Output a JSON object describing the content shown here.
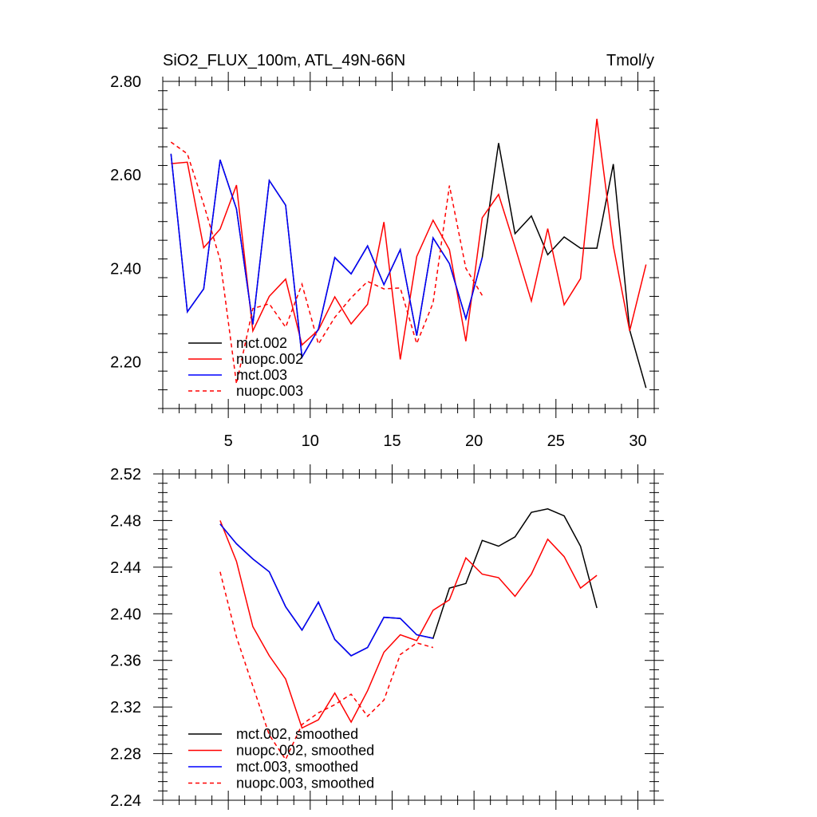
{
  "chart_data": [
    {
      "type": "line",
      "title": "SiO2_FLUX_100m, ATL_49N-66N",
      "units": "Tmol/y",
      "xlim": [
        1,
        31
      ],
      "ylim": [
        2.1,
        2.8
      ],
      "xticks": [
        5,
        10,
        15,
        20,
        25,
        30
      ],
      "xtick_labels": [
        "5",
        "10",
        "15",
        "20",
        "25",
        "30"
      ],
      "yticks": [
        2.2,
        2.4,
        2.6,
        2.8
      ],
      "ytick_labels": [
        "2.20",
        "2.40",
        "2.60",
        "2.80"
      ],
      "legend_position": "bottom-left",
      "series": [
        {
          "name": "mct.002",
          "color": "#000000",
          "dash": "solid",
          "x": [
            1.5,
            2.5,
            3.5,
            4.5,
            5.5,
            6.5,
            7.5,
            8.5,
            9.5,
            10.5,
            11.5,
            12.5,
            13.5,
            14.5,
            15.5,
            16.5,
            17.5,
            18.5,
            19.5,
            20.5,
            21.5,
            22.5,
            23.5,
            24.5,
            25.5,
            26.5,
            27.5,
            28.5,
            29.5,
            30.5
          ],
          "values": [
            2.645,
            2.307,
            2.356,
            2.632,
            2.527,
            2.28,
            2.588,
            2.535,
            2.21,
            2.27,
            2.423,
            2.388,
            2.448,
            2.365,
            2.44,
            2.256,
            2.465,
            2.41,
            2.292,
            2.423,
            2.668,
            2.474,
            2.512,
            2.429,
            2.467,
            2.443,
            2.443,
            2.623,
            2.268,
            2.144
          ]
        },
        {
          "name": "nuopc.002",
          "color": "#ff0000",
          "dash": "solid",
          "x": [
            1.5,
            2.5,
            3.5,
            4.5,
            5.5,
            6.5,
            7.5,
            8.5,
            9.5,
            10.5,
            11.5,
            12.5,
            13.5,
            14.5,
            15.5,
            16.5,
            17.5,
            18.5,
            19.5,
            20.5,
            21.5,
            22.5,
            23.5,
            24.5,
            25.5,
            26.5,
            27.5,
            28.5,
            29.5,
            30.5
          ],
          "values": [
            2.624,
            2.627,
            2.444,
            2.484,
            2.578,
            2.266,
            2.34,
            2.377,
            2.236,
            2.268,
            2.339,
            2.281,
            2.323,
            2.499,
            2.205,
            2.425,
            2.503,
            2.44,
            2.244,
            2.508,
            2.558,
            2.446,
            2.33,
            2.485,
            2.322,
            2.378,
            2.72,
            2.448,
            2.266,
            2.408
          ]
        },
        {
          "name": "mct.003",
          "color": "#0000ff",
          "dash": "solid",
          "x": [
            1.5,
            2.5,
            3.5,
            4.5,
            5.5,
            6.5,
            7.5,
            8.5,
            9.5,
            10.5,
            11.5,
            12.5,
            13.5,
            14.5,
            15.5,
            16.5,
            17.5,
            18.5,
            19.5,
            20.5
          ],
          "values": [
            2.645,
            2.307,
            2.356,
            2.632,
            2.527,
            2.28,
            2.588,
            2.535,
            2.21,
            2.27,
            2.423,
            2.388,
            2.448,
            2.365,
            2.44,
            2.256,
            2.465,
            2.41,
            2.292,
            2.423
          ]
        },
        {
          "name": "nuopc.003",
          "color": "#ff0000",
          "dash": "dashed",
          "x": [
            1.5,
            2.5,
            3.5,
            4.5,
            5.5,
            6.5,
            7.5,
            8.5,
            9.5,
            10.5,
            11.5,
            12.5,
            13.5,
            14.5,
            15.5,
            16.5,
            17.5,
            18.5,
            19.5,
            20.5
          ],
          "values": [
            2.67,
            2.645,
            2.537,
            2.418,
            2.153,
            2.314,
            2.324,
            2.274,
            2.366,
            2.238,
            2.295,
            2.337,
            2.372,
            2.356,
            2.358,
            2.239,
            2.326,
            2.577,
            2.4,
            2.342
          ]
        }
      ]
    },
    {
      "type": "line",
      "title": "",
      "units": "",
      "xlim": [
        1,
        31
      ],
      "ylim": [
        2.24,
        2.52
      ],
      "xticks": [
        5,
        10,
        15,
        20,
        25,
        30
      ],
      "xtick_labels": [],
      "yticks": [
        2.24,
        2.28,
        2.32,
        2.36,
        2.4,
        2.44,
        2.48,
        2.52
      ],
      "ytick_labels": [
        "2.24",
        "2.28",
        "2.32",
        "2.36",
        "2.40",
        "2.44",
        "2.48",
        "2.52"
      ],
      "legend_position": "bottom-left",
      "series": [
        {
          "name": "mct.002, smoothed",
          "color": "#000000",
          "dash": "solid",
          "x": [
            4.5,
            5.5,
            6.5,
            7.5,
            8.5,
            9.5,
            10.5,
            11.5,
            12.5,
            13.5,
            14.5,
            15.5,
            16.5,
            17.5,
            18.5,
            19.5,
            20.5,
            21.5,
            22.5,
            23.5,
            24.5,
            25.5,
            26.5,
            27.5
          ],
          "values": [
            2.477,
            2.46,
            2.447,
            2.436,
            2.406,
            2.386,
            2.41,
            2.378,
            2.364,
            2.371,
            2.397,
            2.396,
            2.382,
            2.379,
            2.422,
            2.426,
            2.463,
            2.458,
            2.466,
            2.487,
            2.49,
            2.484,
            2.458,
            2.405
          ]
        },
        {
          "name": "nuopc.002, smoothed",
          "color": "#ff0000",
          "dash": "solid",
          "x": [
            4.5,
            5.5,
            6.5,
            7.5,
            8.5,
            9.5,
            10.5,
            11.5,
            12.5,
            13.5,
            14.5,
            15.5,
            16.5,
            17.5,
            18.5,
            19.5,
            20.5,
            21.5,
            22.5,
            23.5,
            24.5,
            25.5,
            26.5,
            27.5
          ],
          "values": [
            2.48,
            2.445,
            2.389,
            2.364,
            2.344,
            2.302,
            2.309,
            2.332,
            2.307,
            2.334,
            2.367,
            2.382,
            2.377,
            2.403,
            2.412,
            2.448,
            2.434,
            2.431,
            2.415,
            2.434,
            2.464,
            2.449,
            2.422,
            2.433
          ]
        },
        {
          "name": "mct.003, smoothed",
          "color": "#0000ff",
          "dash": "solid",
          "x": [
            4.5,
            5.5,
            6.5,
            7.5,
            8.5,
            9.5,
            10.5,
            11.5,
            12.5,
            13.5,
            14.5,
            15.5,
            16.5,
            17.5
          ],
          "values": [
            2.477,
            2.46,
            2.447,
            2.436,
            2.406,
            2.386,
            2.41,
            2.378,
            2.364,
            2.371,
            2.397,
            2.396,
            2.382,
            2.379
          ]
        },
        {
          "name": "nuopc.003, smoothed",
          "color": "#ff0000",
          "dash": "dashed",
          "x": [
            4.5,
            5.5,
            6.5,
            7.5,
            8.5,
            9.5,
            10.5,
            11.5,
            12.5,
            13.5,
            14.5,
            15.5,
            16.5,
            17.5
          ],
          "values": [
            2.436,
            2.38,
            2.338,
            2.296,
            2.275,
            2.305,
            2.315,
            2.322,
            2.331,
            2.312,
            2.326,
            2.365,
            2.375,
            2.371
          ]
        }
      ]
    }
  ]
}
